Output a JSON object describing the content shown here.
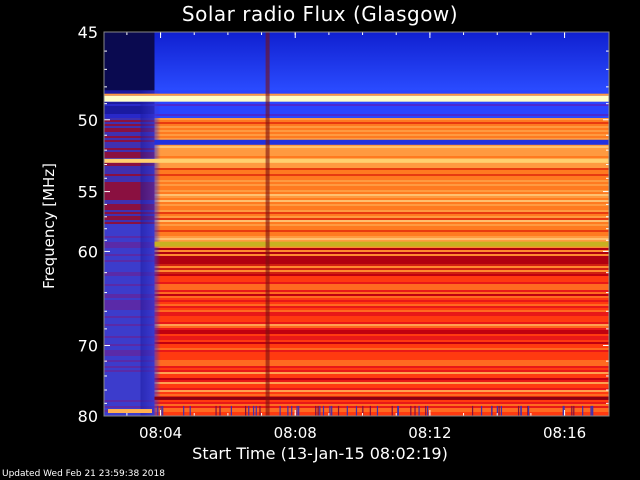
{
  "chart_data": {
    "type": "heatmap",
    "title": "Solar radio Flux (Glasgow)",
    "xlabel": "Start Time (13-Jan-15 08:02:19)",
    "ylabel": "Frequency [MHz]",
    "x_tick_labels": [
      "08:04",
      "08:08",
      "08:12",
      "08:16"
    ],
    "x_ticks_minutes_after_start": [
      1.68,
      5.68,
      9.68,
      13.68
    ],
    "xlim_minutes_after_start": [
      0,
      15.0
    ],
    "y_tick_labels": [
      "45",
      "50",
      "55",
      "60",
      "70",
      "80"
    ],
    "y_ticks_mhz": [
      45,
      50,
      55,
      60,
      70,
      80
    ],
    "ylim_mhz": [
      45,
      80
    ],
    "y_scale": "reciprocal",
    "colormap": [
      "#000020",
      "#2020c0",
      "#2040ff",
      "#a00000",
      "#e01010",
      "#ff6a1a",
      "#ffb050",
      "#ffffa0"
    ],
    "features": [
      {
        "label": "emission onset",
        "minutes_after_start": 1.5
      },
      {
        "label": "bright band",
        "frequency_mhz": 48.7
      },
      {
        "label": "bright band",
        "frequency_mhz": 59.3
      },
      {
        "label": "data gap",
        "minutes_after_start": 4.8
      }
    ]
  },
  "footer": "Updated Wed Feb 21 23:59:38 2018"
}
